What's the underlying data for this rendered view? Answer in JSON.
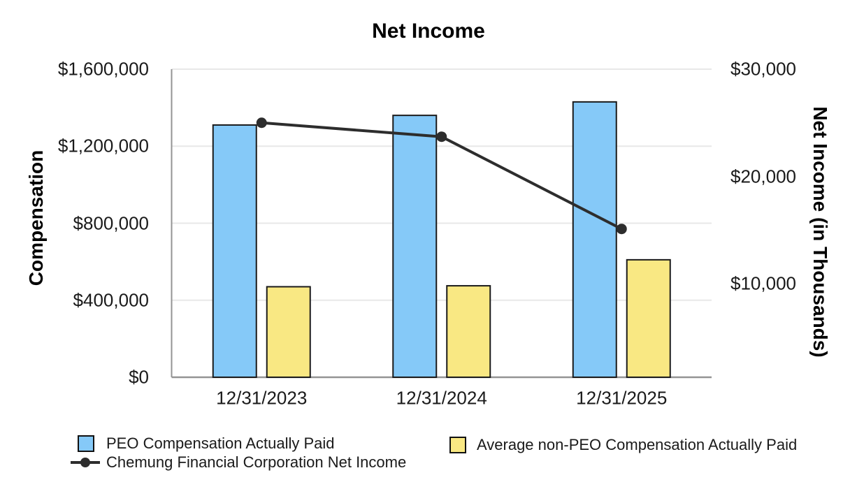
{
  "title": "Net Income",
  "axes": {
    "left": {
      "label": "Compensation",
      "ticks": [
        {
          "value": 1600000,
          "text": "$1,600,000"
        },
        {
          "value": 1200000,
          "text": "$1,200,000"
        },
        {
          "value": 800000,
          "text": "$800,000"
        },
        {
          "value": 400000,
          "text": "$400,000"
        },
        {
          "value": 0,
          "text": "$0"
        }
      ]
    },
    "right": {
      "label": "Net Income (in Thousands)",
      "ticks": [
        {
          "value": 30000,
          "text": "$30,000"
        },
        {
          "value": 20000,
          "text": "$20,000"
        },
        {
          "value": 10000,
          "text": "$10,000"
        }
      ]
    }
  },
  "chart_data": {
    "type": "combo-bar-line",
    "title": "Net Income",
    "categories": [
      "12/31/2023",
      "12/31/2024",
      "12/31/2025"
    ],
    "series": [
      {
        "name": "PEO Compensation Actually Paid",
        "type": "bar",
        "axis": "left",
        "color": "#85C9F8",
        "values": [
          1310000,
          1360000,
          1430000
        ]
      },
      {
        "name": "Average non-PEO Compensation Actually Paid",
        "type": "bar",
        "axis": "left",
        "color": "#F9E883",
        "values": [
          470000,
          475000,
          610000
        ]
      },
      {
        "name": "Chemung Financial Corporation Net Income",
        "type": "line",
        "axis": "right",
        "color": "#2d2d2d",
        "values": [
          25000,
          23700,
          15100
        ]
      }
    ],
    "xlabel": "",
    "ylabel_left": "Compensation",
    "ylabel_right": "Net Income (in Thousands)",
    "left_axis_range": [
      0,
      1600000
    ],
    "right_axis_label_range": [
      10000,
      30000
    ],
    "grid": true,
    "legend_position": "bottom"
  },
  "legend": {
    "items": [
      {
        "label": "PEO Compensation Actually Paid",
        "swatch": "blue-square"
      },
      {
        "label": "Chemung Financial Corporation Net Income",
        "swatch": "line-marker"
      },
      {
        "label": "Average non-PEO Compensation Actually Paid",
        "swatch": "yellow-square"
      }
    ]
  },
  "colors": {
    "peo_bar": "#85C9F8",
    "non_peo_bar": "#F9E883",
    "net_income_line": "#2d2d2d",
    "gridline": "#e8e8e8",
    "axis_line": "#949494",
    "bar_border": "#1a1a1a",
    "text": "#1a1a1a"
  }
}
